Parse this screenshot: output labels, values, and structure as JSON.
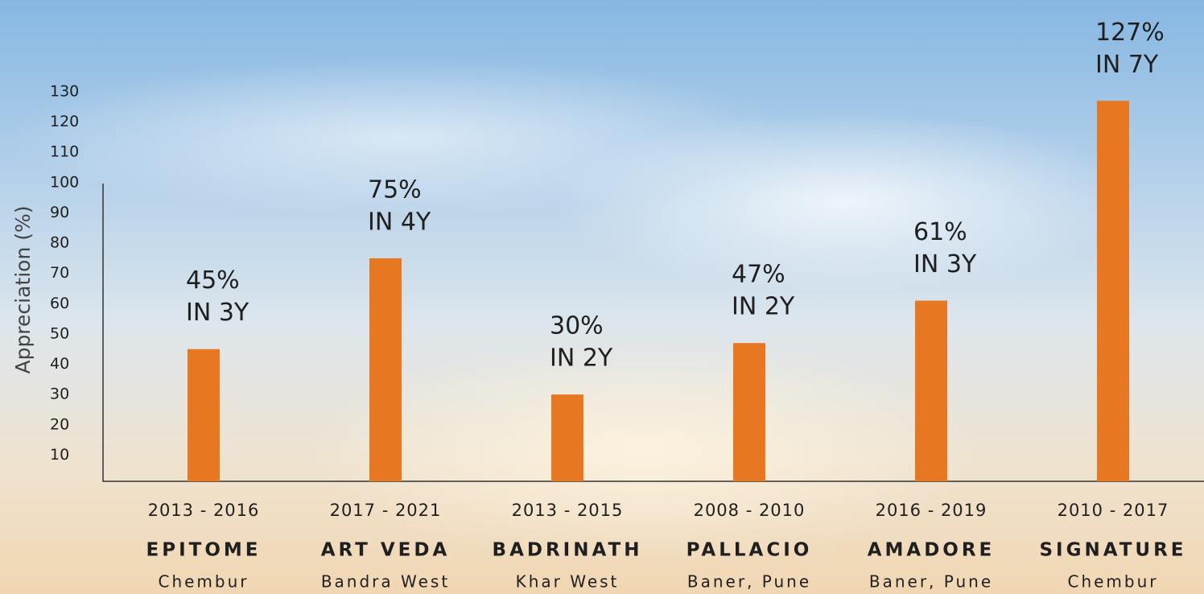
{
  "chart_data": {
    "type": "bar",
    "y_label": "Appreciation (%)",
    "categories": [
      "EPITOME",
      "ART VEDA",
      "BADRINATH",
      "PALLACIO",
      "AMADORE",
      "SIGNATURE"
    ],
    "periods": [
      "2013 - 2016",
      "2017 - 2021",
      "2013 - 2015",
      "2008 - 2010",
      "2016 - 2019",
      "2010 - 2017"
    ],
    "locations": [
      "Chembur",
      "Bandra West",
      "Khar West",
      "Baner, Pune",
      "Baner, Pune",
      "Chembur"
    ],
    "values": [
      45,
      75,
      30,
      47,
      61,
      127
    ],
    "value_labels": [
      "45%",
      "75%",
      "30%",
      "47%",
      "61%",
      "127%"
    ],
    "annotations": [
      "IN 3Y",
      "IN 4Y",
      "IN 2Y",
      "IN 2Y",
      "IN 3Y",
      "IN 7Y"
    ],
    "color": "#e87722",
    "ylim": [
      0,
      130
    ],
    "yticks": [
      10,
      20,
      30,
      40,
      50,
      60,
      70,
      80,
      90,
      100,
      110,
      120,
      130
    ]
  }
}
